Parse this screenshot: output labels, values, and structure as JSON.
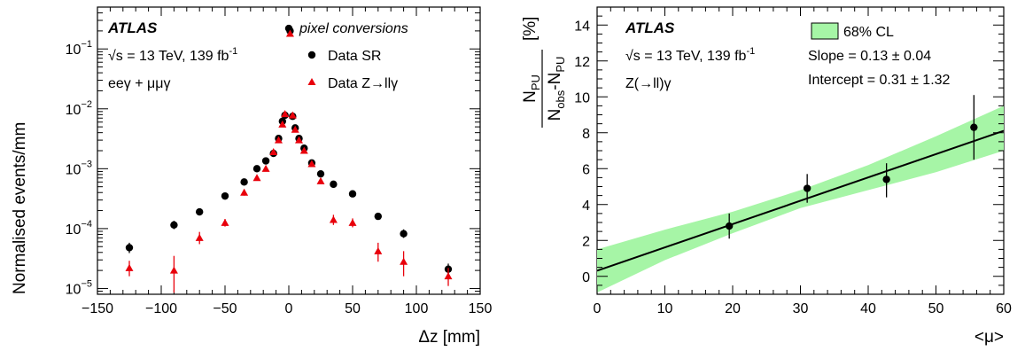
{
  "chart_data": [
    {
      "type": "scatter",
      "ylog": true,
      "xlabel": "Δz [mm]",
      "ylabel": "Normalised events/mm",
      "xlim": [
        -150,
        150
      ],
      "ylim": [
        8e-06,
        0.5
      ],
      "x_ticks": [
        -150,
        -100,
        -50,
        0,
        50,
        100,
        150
      ],
      "y_ticks": [
        {
          "value": 1e-05,
          "base": "10",
          "exp": "−5"
        },
        {
          "value": 0.0001,
          "base": "10",
          "exp": "−4"
        },
        {
          "value": 0.001,
          "base": "10",
          "exp": "−3"
        },
        {
          "value": 0.01,
          "base": "10",
          "exp": "−2"
        },
        {
          "value": 0.1,
          "base": "10",
          "exp": "−1"
        }
      ],
      "annotation": {
        "experiment": "ATLAS",
        "energy_lumi": "√s = 13 TeV, 139 fb",
        "energy_lumi_sup": "-1",
        "channel": "eeγ + μμγ"
      },
      "legend_title": "pixel conversions",
      "legend_position": "top-right",
      "series": [
        {
          "name": "Data SR",
          "marker": "circle",
          "color": "#000000",
          "points": [
            {
              "x": -125,
              "y": 4.8e-05,
              "lo": 3.9e-05,
              "hi": 5.8e-05
            },
            {
              "x": -90,
              "y": 0.000115,
              "lo": 9.8e-05,
              "hi": 0.000135
            },
            {
              "x": -70,
              "y": 0.00019,
              "lo": 0.000172,
              "hi": 0.00021
            },
            {
              "x": -50,
              "y": 0.00035,
              "lo": 0.00033,
              "hi": 0.00037
            },
            {
              "x": -35,
              "y": 0.0006,
              "lo": 0.00058,
              "hi": 0.00062
            },
            {
              "x": -25,
              "y": 0.001,
              "lo": 0.00098,
              "hi": 0.00102
            },
            {
              "x": -18,
              "y": 0.00135
            },
            {
              "x": -12,
              "y": 0.0018
            },
            {
              "x": -8,
              "y": 0.0032
            },
            {
              "x": -5,
              "y": 0.0062
            },
            {
              "x": -3,
              "y": 0.0078
            },
            {
              "x": 0,
              "y": 0.22
            },
            {
              "x": 1,
              "y": 0.2
            },
            {
              "x": 3,
              "y": 0.0075
            },
            {
              "x": 5,
              "y": 0.0048
            },
            {
              "x": 8,
              "y": 0.0032
            },
            {
              "x": 12,
              "y": 0.0022
            },
            {
              "x": 18,
              "y": 0.00125
            },
            {
              "x": 25,
              "y": 0.00082
            },
            {
              "x": 35,
              "y": 0.00055
            },
            {
              "x": 50,
              "y": 0.00038
            },
            {
              "x": 70,
              "y": 0.00016,
              "lo": 0.000145,
              "hi": 0.000177
            },
            {
              "x": 90,
              "y": 8.2e-05,
              "lo": 7e-05,
              "hi": 9.7e-05
            },
            {
              "x": 125,
              "y": 2.1e-05,
              "lo": 1.7e-05,
              "hi": 2.6e-05
            }
          ]
        },
        {
          "name": "Data Z→llγ",
          "marker": "triangle",
          "color": "#e8000b",
          "points": [
            {
              "x": -125,
              "y": 2.2e-05,
              "lo": 1.6e-05,
              "hi": 2.9e-05
            },
            {
              "x": -90,
              "y": 2e-05,
              "lo": 8.5e-06,
              "hi": 3.5e-05
            },
            {
              "x": -70,
              "y": 7e-05,
              "lo": 5.5e-05,
              "hi": 8.8e-05
            },
            {
              "x": -50,
              "y": 0.000125,
              "lo": 0.000108,
              "hi": 0.000145
            },
            {
              "x": -35,
              "y": 0.0004,
              "lo": 0.000355,
              "hi": 0.00045
            },
            {
              "x": -25,
              "y": 0.0007,
              "lo": 0.00064,
              "hi": 0.00077
            },
            {
              "x": -18,
              "y": 0.001,
              "lo": 0.00092,
              "hi": 0.00109
            },
            {
              "x": -12,
              "y": 0.0019
            },
            {
              "x": -8,
              "y": 0.003
            },
            {
              "x": -5,
              "y": 0.0055
            },
            {
              "x": -3,
              "y": 0.0082
            },
            {
              "x": 1,
              "y": 0.18
            },
            {
              "x": 3,
              "y": 0.0078
            },
            {
              "x": 5,
              "y": 0.0045
            },
            {
              "x": 8,
              "y": 0.003
            },
            {
              "x": 12,
              "y": 0.002
            },
            {
              "x": 18,
              "y": 0.0012
            },
            {
              "x": 25,
              "y": 0.00062,
              "lo": 0.00057,
              "hi": 0.00068
            },
            {
              "x": 35,
              "y": 0.00014,
              "lo": 0.000115,
              "hi": 0.00017
            },
            {
              "x": 50,
              "y": 0.000125,
              "lo": 0.000105,
              "hi": 0.000148
            },
            {
              "x": 70,
              "y": 4.2e-05,
              "lo": 2.8e-05,
              "hi": 5.8e-05
            },
            {
              "x": 90,
              "y": 2.8e-05,
              "lo": 1.6e-05,
              "hi": 4.2e-05
            },
            {
              "x": 125,
              "y": 1.6e-05,
              "lo": 1.1e-05,
              "hi": 2.2e-05
            }
          ]
        }
      ]
    },
    {
      "type": "scatter",
      "xlabel": "<μ>",
      "ylabel": "N_PU / (N_obs − N_PU) [%]",
      "ylabel_parts": {
        "num_base": "N",
        "num_sub": "PU",
        "den_base1": "N",
        "den_sub1": "obs",
        "den_mid": "-N",
        "den_sub2": "PU",
        "unit": "[%]"
      },
      "xlim": [
        0,
        60
      ],
      "ylim": [
        -1,
        15
      ],
      "x_ticks": [
        0,
        10,
        20,
        30,
        40,
        50,
        60
      ],
      "y_ticks": [
        0,
        2,
        4,
        6,
        8,
        10,
        12,
        14
      ],
      "annotation": {
        "experiment": "ATLAS",
        "energy_lumi": "√s = 13 TeV, 139 fb",
        "energy_lumi_sup": "-1",
        "channel": "Z(→ll)γ"
      },
      "band_legend": "68% CL",
      "slope_text": "Slope = 0.13 ± 0.04",
      "intercept_text": "Intercept = 0.31 ± 1.32",
      "fit": {
        "slope": 0.13,
        "intercept": 0.31
      },
      "band": [
        {
          "x": 0,
          "lo": -0.9,
          "hi": 1.5
        },
        {
          "x": 10,
          "lo": 0.9,
          "hi": 2.6
        },
        {
          "x": 20,
          "lo": 2.4,
          "hi": 3.6
        },
        {
          "x": 30,
          "lo": 3.8,
          "hi": 4.8
        },
        {
          "x": 40,
          "lo": 4.8,
          "hi": 6.2
        },
        {
          "x": 50,
          "lo": 5.8,
          "hi": 7.8
        },
        {
          "x": 60,
          "lo": 7.0,
          "hi": 9.5
        }
      ],
      "colors": {
        "band_fill": "#a6f5a6",
        "band_edge": "#000000"
      },
      "points": [
        {
          "x": 19.5,
          "y": 2.8,
          "lo": 2.1,
          "hi": 3.5
        },
        {
          "x": 31,
          "y": 4.9,
          "lo": 4.1,
          "hi": 5.7
        },
        {
          "x": 42.7,
          "y": 5.4,
          "lo": 4.4,
          "hi": 6.3
        },
        {
          "x": 55.6,
          "y": 8.3,
          "lo": 6.5,
          "hi": 10.1
        }
      ]
    }
  ]
}
